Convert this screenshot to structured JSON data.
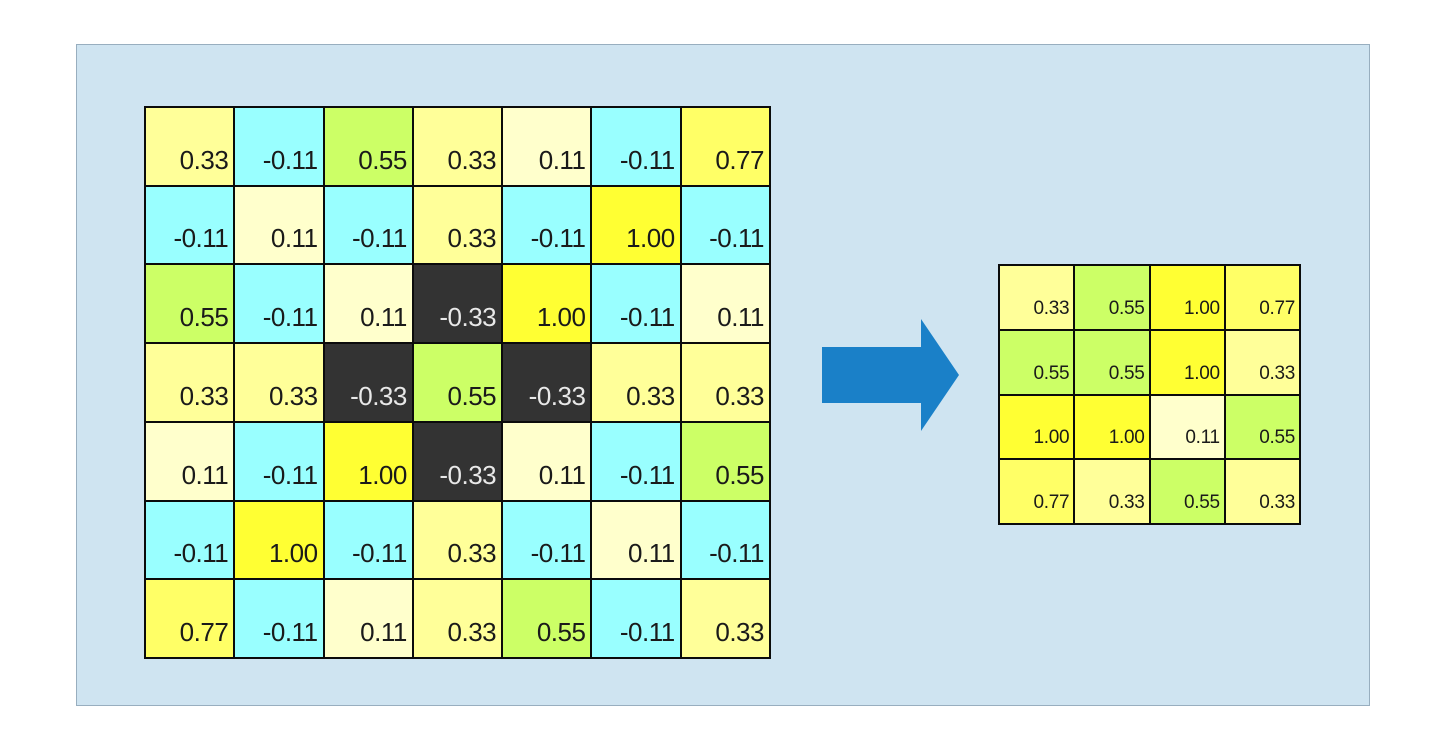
{
  "colors": {
    "panel_background": "#cfe4f1",
    "panel_border": "#98aebf",
    "grid_line": "#0b0b0b",
    "arrow": "#1a80c8",
    "value_colors": {
      "-0.33": "#333333",
      "-0.11": "#99ffff",
      "0.11": "#ffffcc",
      "0.33": "#ffff99",
      "0.55": "#ccff66",
      "0.77": "#ffff66",
      "1.00": "#ffff33"
    },
    "value_text_colors": {
      "-0.33": "#e8e8e8"
    }
  },
  "input_grid": {
    "rows": [
      [
        "0.33",
        "-0.11",
        "0.55",
        "0.33",
        "0.11",
        "-0.11",
        "0.77"
      ],
      [
        "-0.11",
        "0.11",
        "-0.11",
        "0.33",
        "-0.11",
        "1.00",
        "-0.11"
      ],
      [
        "0.55",
        "-0.11",
        "0.11",
        "-0.33",
        "1.00",
        "-0.11",
        "0.11"
      ],
      [
        "0.33",
        "0.33",
        "-0.33",
        "0.55",
        "-0.33",
        "0.33",
        "0.33"
      ],
      [
        "0.11",
        "-0.11",
        "1.00",
        "-0.33",
        "0.11",
        "-0.11",
        "0.55"
      ],
      [
        "-0.11",
        "1.00",
        "-0.11",
        "0.33",
        "-0.11",
        "0.11",
        "-0.11"
      ],
      [
        "0.77",
        "-0.11",
        "0.11",
        "0.33",
        "0.55",
        "-0.11",
        "0.33"
      ]
    ]
  },
  "arrow": {
    "icon": "arrow-right-icon"
  },
  "output_grid": {
    "rows": [
      [
        "0.33",
        "0.55",
        "1.00",
        "0.77"
      ],
      [
        "0.55",
        "0.55",
        "1.00",
        "0.33"
      ],
      [
        "1.00",
        "1.00",
        "0.11",
        "0.55"
      ],
      [
        "0.77",
        "0.33",
        "0.55",
        "0.33"
      ]
    ]
  }
}
